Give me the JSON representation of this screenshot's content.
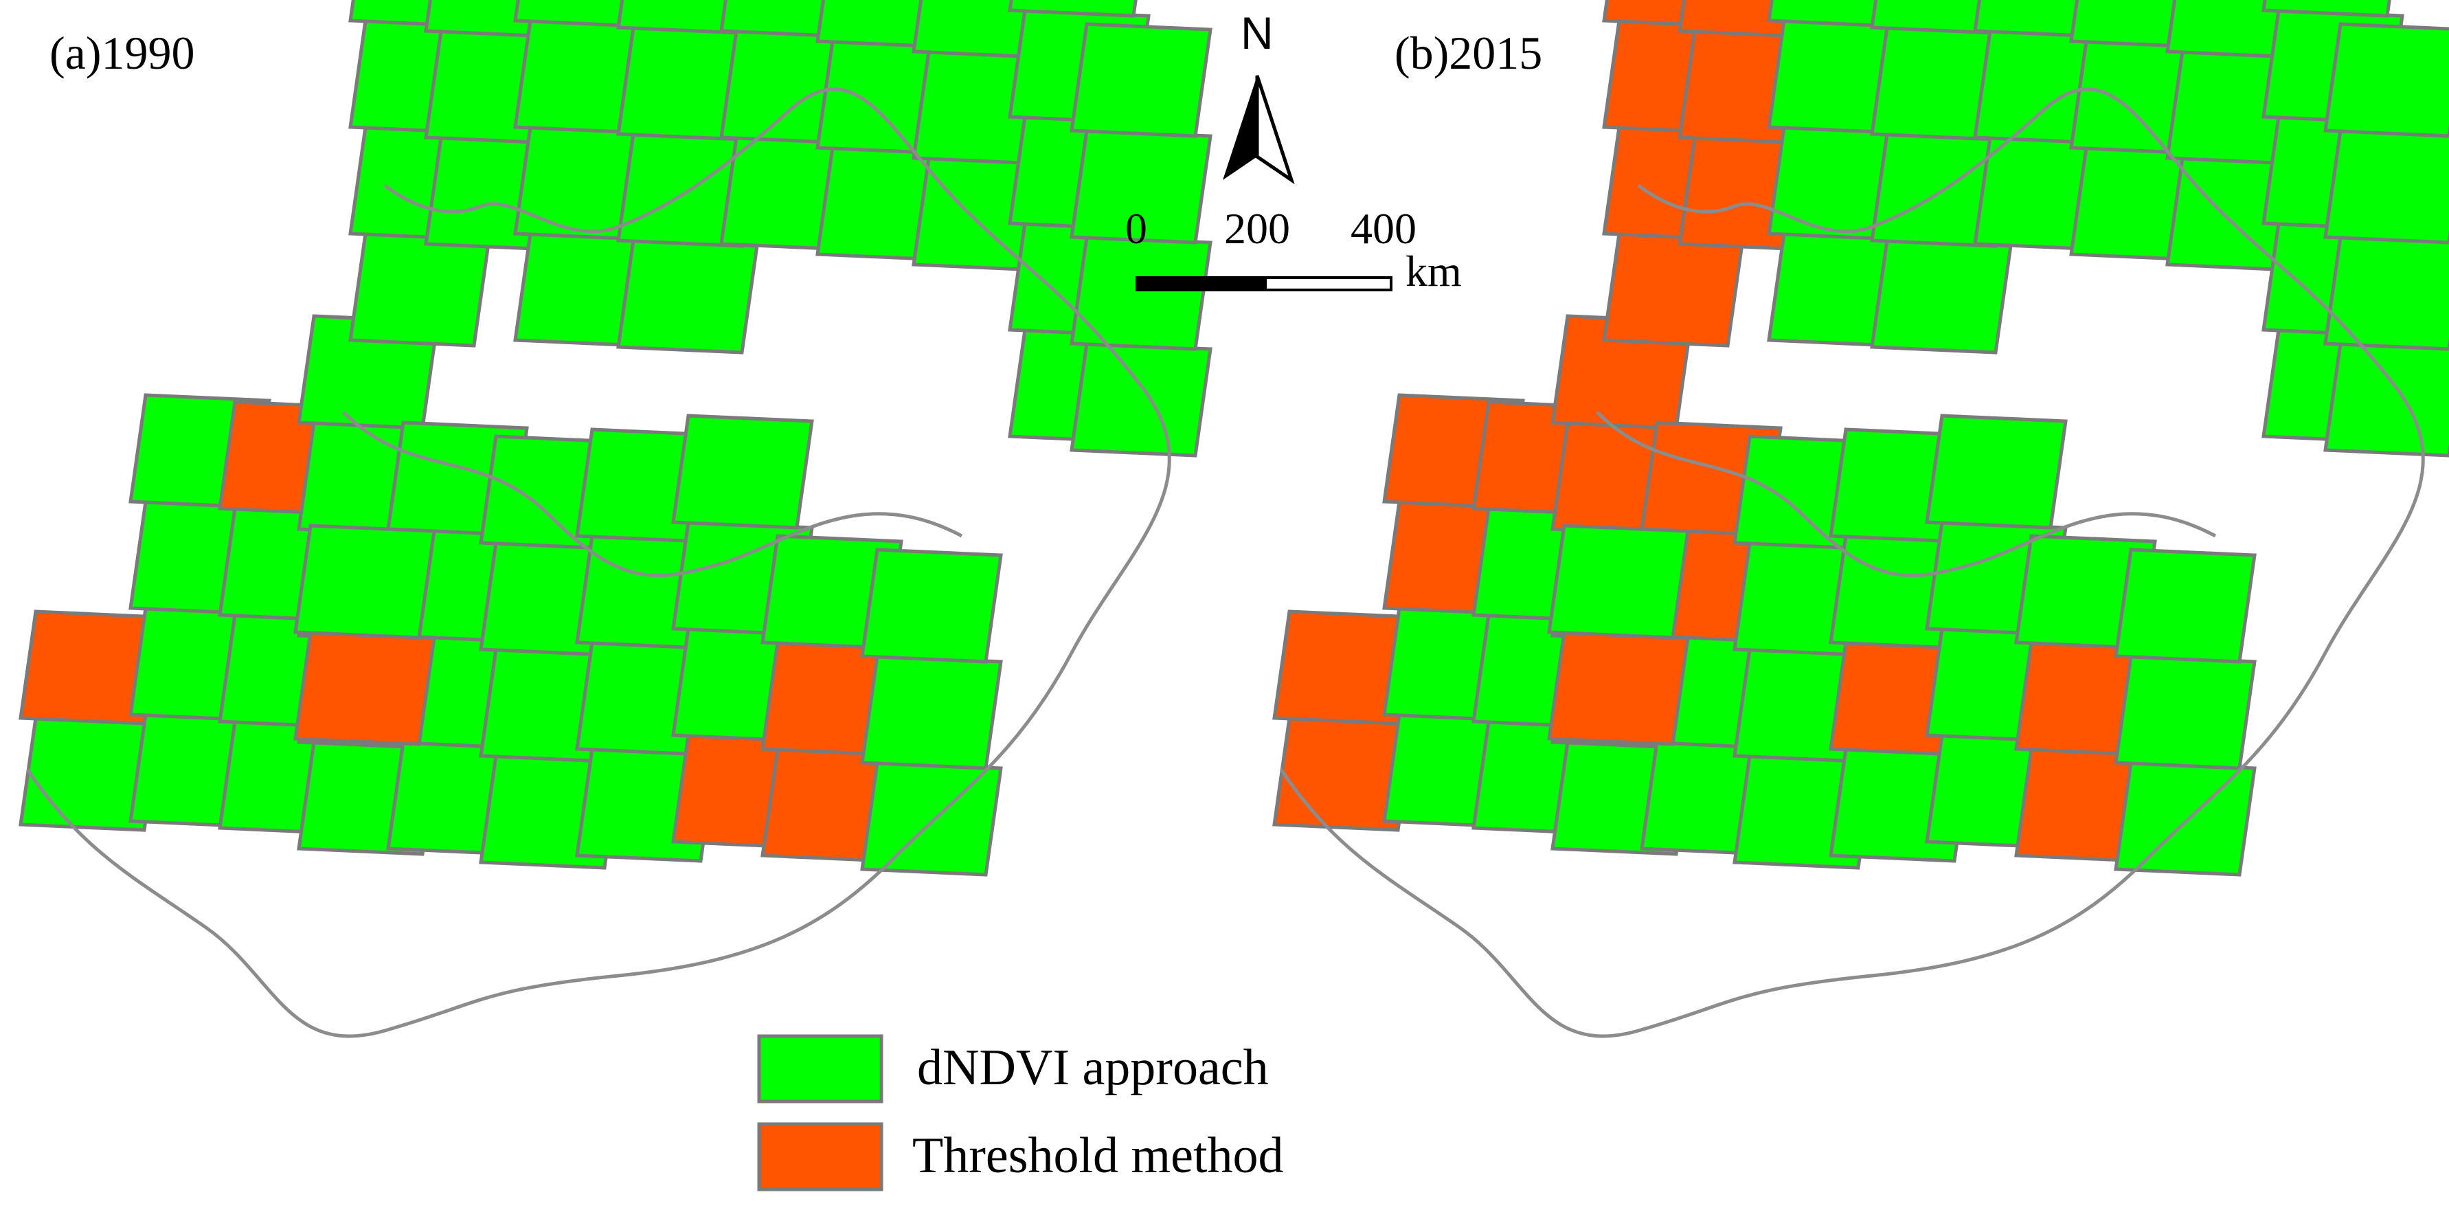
{
  "colors": {
    "dndvi": "#00ff00",
    "threshold": "#ff5500",
    "tile_stroke": "#7a7a7a",
    "boundary": "#8c8c8c"
  },
  "panels": [
    {
      "title": "(a)1990"
    },
    {
      "title": "(b)2015"
    }
  ],
  "north_arrow": {
    "label": "N"
  },
  "scale_bar": {
    "ticks": [
      "0",
      "200",
      "400"
    ],
    "unit": "km"
  },
  "legend": [
    {
      "label": "dNDVI approach",
      "color": "#00ff00"
    },
    {
      "label": "Threshold method",
      "color": "#ff5500"
    }
  ]
}
